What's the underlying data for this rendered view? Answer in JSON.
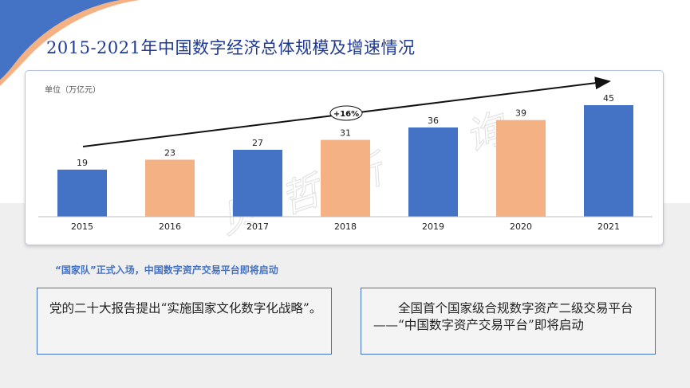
{
  "page": {
    "title": "2015-2021年中国数字经济总体规模及增速情况",
    "subheading": "“国家队”正式入场，中国数字资产交易平台即将启动",
    "box_left_text": "党的二十大报告提出“实施国家文化数字化战略”。",
    "box_right_text": "全国首个国家级合规数字资产二级交易平台——“中国数字资产交易平台”即将启动",
    "watermark": "贝哲斯咨询"
  },
  "colors": {
    "title": "#1f3a93",
    "blue_bar": "#4472c4",
    "orange_bar": "#f4b183",
    "accent": "#4472c4"
  },
  "chart_data": {
    "type": "bar",
    "unit_label": "单位（万亿元）",
    "categories": [
      "2015",
      "2016",
      "2017",
      "2018",
      "2019",
      "2020",
      "2021"
    ],
    "values": [
      19,
      23,
      27,
      31,
      36,
      39,
      45
    ],
    "bar_colors": [
      "#4472c4",
      "#f4b183",
      "#4472c4",
      "#f4b183",
      "#4472c4",
      "#f4b183",
      "#4472c4"
    ],
    "ylim": [
      0,
      45
    ],
    "grid": false,
    "legend": "none",
    "annotation": "+16%",
    "trend_arrow": true
  }
}
